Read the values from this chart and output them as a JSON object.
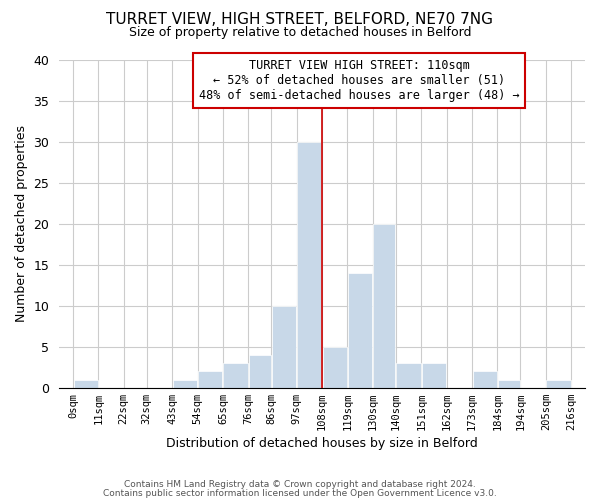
{
  "title": "TURRET VIEW, HIGH STREET, BELFORD, NE70 7NG",
  "subtitle": "Size of property relative to detached houses in Belford",
  "xlabel": "Distribution of detached houses by size in Belford",
  "ylabel": "Number of detached properties",
  "bar_color": "#c8d8e8",
  "bar_edge_color": "#ffffff",
  "grid_color": "#cccccc",
  "vline_color": "#cc0000",
  "vline_x": 108,
  "bin_edges": [
    0,
    11,
    22,
    32,
    43,
    54,
    65,
    76,
    86,
    97,
    108,
    119,
    130,
    140,
    151,
    162,
    173,
    184,
    194,
    205,
    216
  ],
  "bin_labels": [
    "0sqm",
    "11sqm",
    "22sqm",
    "32sqm",
    "43sqm",
    "54sqm",
    "65sqm",
    "76sqm",
    "86sqm",
    "97sqm",
    "108sqm",
    "119sqm",
    "130sqm",
    "140sqm",
    "151sqm",
    "162sqm",
    "173sqm",
    "184sqm",
    "194sqm",
    "205sqm",
    "216sqm"
  ],
  "counts": [
    1,
    0,
    0,
    0,
    1,
    2,
    3,
    4,
    10,
    30,
    5,
    14,
    20,
    3,
    3,
    0,
    2,
    1,
    0,
    1
  ],
  "ylim": [
    0,
    40
  ],
  "yticks": [
    0,
    5,
    10,
    15,
    20,
    25,
    30,
    35,
    40
  ],
  "annotation_title": "TURRET VIEW HIGH STREET: 110sqm",
  "annotation_line1": "← 52% of detached houses are smaller (51)",
  "annotation_line2": "48% of semi-detached houses are larger (48) →",
  "footnote1": "Contains HM Land Registry data © Crown copyright and database right 2024.",
  "footnote2": "Contains public sector information licensed under the Open Government Licence v3.0.",
  "background_color": "#ffffff",
  "title_fontsize": 11,
  "subtitle_fontsize": 9,
  "annotation_box_edge": "#cc0000"
}
